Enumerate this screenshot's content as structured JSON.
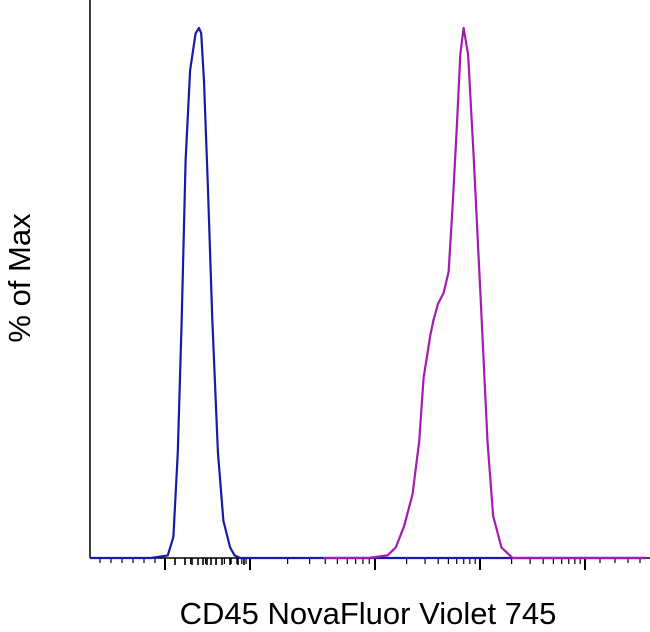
{
  "chart_data": {
    "type": "line",
    "title": "",
    "xlabel": "CD45 NovaFluor Violet 745",
    "ylabel": "% of Max",
    "xscale": "log (flow cytometry biexponential)",
    "x_tick_labels": [],
    "y_tick_labels": [],
    "x_range": [
      0,
      1
    ],
    "ylim": [
      0,
      100
    ],
    "legend": "none",
    "grid": false,
    "series": [
      {
        "color": "#1a1aa6",
        "x": [
          0.0,
          0.11,
          0.14,
          0.15,
          0.158,
          0.165,
          0.172,
          0.18,
          0.19,
          0.196,
          0.2,
          0.205,
          0.212,
          0.22,
          0.23,
          0.24,
          0.252,
          0.26,
          0.27,
          0.29,
          1.0
        ],
        "y": [
          0.0,
          0.0,
          0.5,
          4.0,
          20.0,
          45.0,
          75.0,
          92.0,
          99.0,
          100.0,
          99.0,
          90.0,
          70.0,
          45.0,
          20.0,
          7.0,
          2.0,
          0.5,
          0.0,
          0.0,
          0.0
        ]
      },
      {
        "color": "#a21caf",
        "x": [
          0.42,
          0.5,
          0.535,
          0.55,
          0.565,
          0.58,
          0.592,
          0.6,
          0.612,
          0.618,
          0.626,
          0.636,
          0.645,
          0.652,
          0.66,
          0.666,
          0.672,
          0.68,
          0.69,
          0.703,
          0.715,
          0.725,
          0.74,
          0.76,
          1.0
        ],
        "y": [
          0.0,
          0.0,
          0.5,
          2.0,
          6.0,
          12.0,
          22.0,
          34.0,
          42.0,
          45.0,
          48.0,
          50.0,
          54.0,
          66.0,
          82.0,
          95.0,
          100.0,
          95.0,
          76.0,
          48.0,
          22.0,
          8.0,
          2.0,
          0.0,
          0.0
        ]
      }
    ]
  }
}
